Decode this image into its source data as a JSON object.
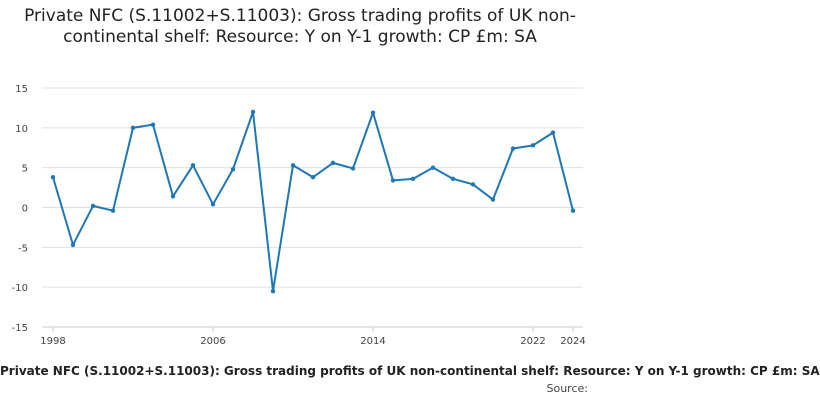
{
  "chart_data": {
    "type": "line",
    "title": "Private NFC (S.11002+S.11003): Gross trading profits of UK non-continental shelf: Resource: Y on Y-1 growth: CP £m: SA",
    "legend_text": "Private NFC (S.11002+S.11003): Gross trading profits of UK non-continental shelf: Resource: Y on Y-1 growth: CP £m: SA",
    "source_label": "Source:",
    "xlabel": "",
    "ylabel": "",
    "ylim": [
      -15,
      15
    ],
    "y_ticks": [
      15,
      10,
      5,
      0,
      -5,
      -10,
      -15
    ],
    "xlim": [
      1998,
      2024
    ],
    "x_tick_labels": [
      1998,
      2006,
      2014,
      2022,
      2024
    ],
    "grid": true,
    "line_color": "#1f77b4",
    "series": [
      {
        "x": [
          1998,
          1999,
          2000,
          2001,
          2002,
          2003,
          2004,
          2005,
          2006,
          2007,
          2008,
          2009,
          2010,
          2011,
          2012,
          2013,
          2014,
          2015,
          2016,
          2017,
          2018,
          2019,
          2020,
          2021,
          2022,
          2023,
          2024
        ],
        "values": [
          3.8,
          -4.7,
          0.2,
          -0.4,
          10.0,
          10.4,
          1.4,
          5.3,
          0.4,
          4.8,
          12.0,
          -10.5,
          5.3,
          3.8,
          5.6,
          4.9,
          11.9,
          3.4,
          3.6,
          5.0,
          3.6,
          2.9,
          1.0,
          7.4,
          7.8,
          9.4,
          -0.4
        ]
      }
    ]
  }
}
